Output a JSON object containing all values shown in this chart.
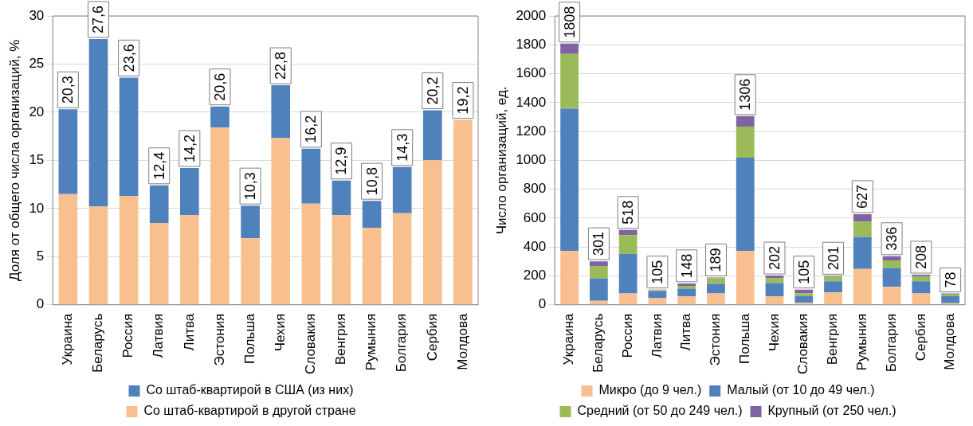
{
  "chart_data": [
    {
      "type": "bar",
      "stacked": true,
      "ylabel": "Доля от общего числа организаций, %",
      "categories": [
        "Украина",
        "Беларусь",
        "Россия",
        "Латвия",
        "Литва",
        "Эстония",
        "Польша",
        "Чехия",
        "Словакия",
        "Венгрия",
        "Румыния",
        "Болгария",
        "Сербия",
        "Молдова"
      ],
      "series": [
        {
          "name": "Со штаб-квартирой в другой стране",
          "color": "#f9c08f",
          "values": [
            11.5,
            10.2,
            11.3,
            8.5,
            9.3,
            18.4,
            6.9,
            17.3,
            10.5,
            9.3,
            8.0,
            9.5,
            15.0,
            19.2
          ]
        },
        {
          "name": "Со штаб-квартирой в США (из них)",
          "color": "#4f81bd",
          "values": [
            8.8,
            17.4,
            12.3,
            3.9,
            4.9,
            2.2,
            3.4,
            5.5,
            5.7,
            3.6,
            2.8,
            4.8,
            5.2,
            0
          ]
        }
      ],
      "totals": [
        "20,3",
        "27,6",
        "23,6",
        "12,4",
        "14,2",
        "20,6",
        "10,3",
        "22,8",
        "16,2",
        "12,9",
        "10,8",
        "14,3",
        "20,2",
        "19,2"
      ],
      "ylim": [
        0,
        30
      ],
      "yticks": [
        0,
        5,
        10,
        15,
        20,
        25,
        30
      ],
      "grid": "y",
      "legend": "bottom"
    },
    {
      "type": "bar",
      "stacked": true,
      "ylabel": "Число организаций, ед.",
      "categories": [
        "Украина",
        "Беларусь",
        "Россия",
        "Латвия",
        "Литва",
        "Эстония",
        "Польша",
        "Чехия",
        "Словакия",
        "Венгрия",
        "Румыния",
        "Болгария",
        "Сербия",
        "Молдова"
      ],
      "series": [
        {
          "name": "Микро (до 9 чел.)",
          "color": "#f9c08f",
          "values": [
            372,
            28,
            78,
            46,
            59,
            78,
            372,
            59,
            13,
            85,
            248,
            124,
            78,
            11
          ]
        },
        {
          "name": "Малый (от 10 до 49 чел.)",
          "color": "#4f81bd",
          "values": [
            986,
            155,
            275,
            48,
            52,
            66,
            646,
            91,
            46,
            78,
            222,
            131,
            85,
            48
          ]
        },
        {
          "name": "Средний (от 50 до 249 чел.)",
          "color": "#9bbb59",
          "values": [
            379,
            85,
            130,
            6,
            20,
            40,
            216,
            33,
            19,
            33,
            105,
            52,
            33,
            13
          ]
        },
        {
          "name": "Крупный (от 250 чел.)",
          "color": "#8064a2",
          "values": [
            71,
            33,
            35,
            5,
            17,
            5,
            72,
            19,
            27,
            5,
            52,
            29,
            12,
            6
          ]
        }
      ],
      "totals": [
        "1808",
        "301",
        "518",
        "105",
        "148",
        "189",
        "1306",
        "202",
        "105",
        "201",
        "627",
        "336",
        "208",
        "78"
      ],
      "ylim": [
        0,
        2000
      ],
      "yticks": [
        0,
        200,
        400,
        600,
        800,
        1000,
        1200,
        1400,
        1600,
        1800,
        2000
      ],
      "grid": "y",
      "legend": "bottom"
    }
  ]
}
